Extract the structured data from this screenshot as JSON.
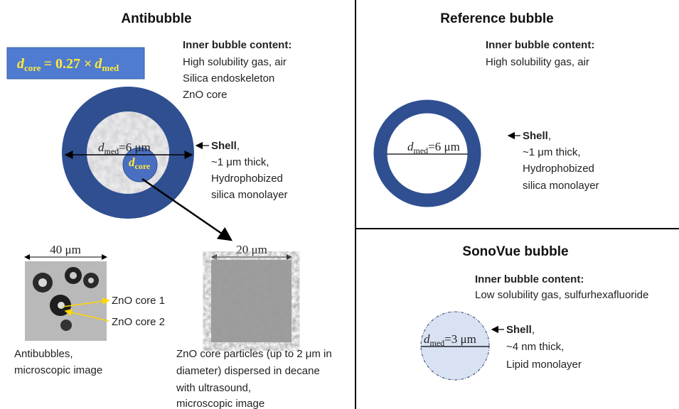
{
  "antibubble": {
    "title": "Antibubble",
    "formula": [
      "d",
      "core",
      "= 0.27 ×",
      "d",
      "med"
    ],
    "content": {
      "heading": "Inner bubble content:",
      "lines": [
        "High solubility gas, air",
        "Silica endoskeleton",
        "ZnO core"
      ]
    },
    "diameter": [
      "d",
      "med",
      "=6 μm"
    ],
    "core_label": [
      "d",
      "core"
    ],
    "shell": {
      "name": "Shell",
      "lines": [
        "~1 μm thick,",
        "Hydrophobized",
        "silica monolayer"
      ]
    },
    "images": [
      {
        "scale": "40 μm",
        "labels": [
          "ZnO core 1",
          "ZnO core 2"
        ],
        "caption": [
          "Antibubbles,",
          "microscopic image"
        ]
      },
      {
        "scale": "20 μm",
        "caption": [
          "ZnO core particles (up to 2 μm in",
          "diameter)  dispersed in decane",
          "with  ultrasound,",
          "microscopic image"
        ]
      }
    ]
  },
  "reference": {
    "title": "Reference bubble",
    "content": {
      "heading": "Inner bubble content:",
      "lines": [
        "High solubility gas, air"
      ]
    },
    "diameter": [
      "d",
      "med",
      "=6 μm"
    ],
    "shell": {
      "name": "Shell",
      "lines": [
        "~1 μm thick,",
        "Hydrophobized",
        "silica monolayer"
      ]
    }
  },
  "sonovue": {
    "title": "SonoVue bubble",
    "content": {
      "heading": "Inner bubble content:",
      "lines": [
        "Low solubility gas, sulfurhexafluoride"
      ]
    },
    "diameter": [
      "d",
      "med",
      "=3 μm"
    ],
    "shell": {
      "name": "Shell",
      "lines": [
        "~4 nm thick,",
        "Lipid monolayer"
      ]
    }
  }
}
